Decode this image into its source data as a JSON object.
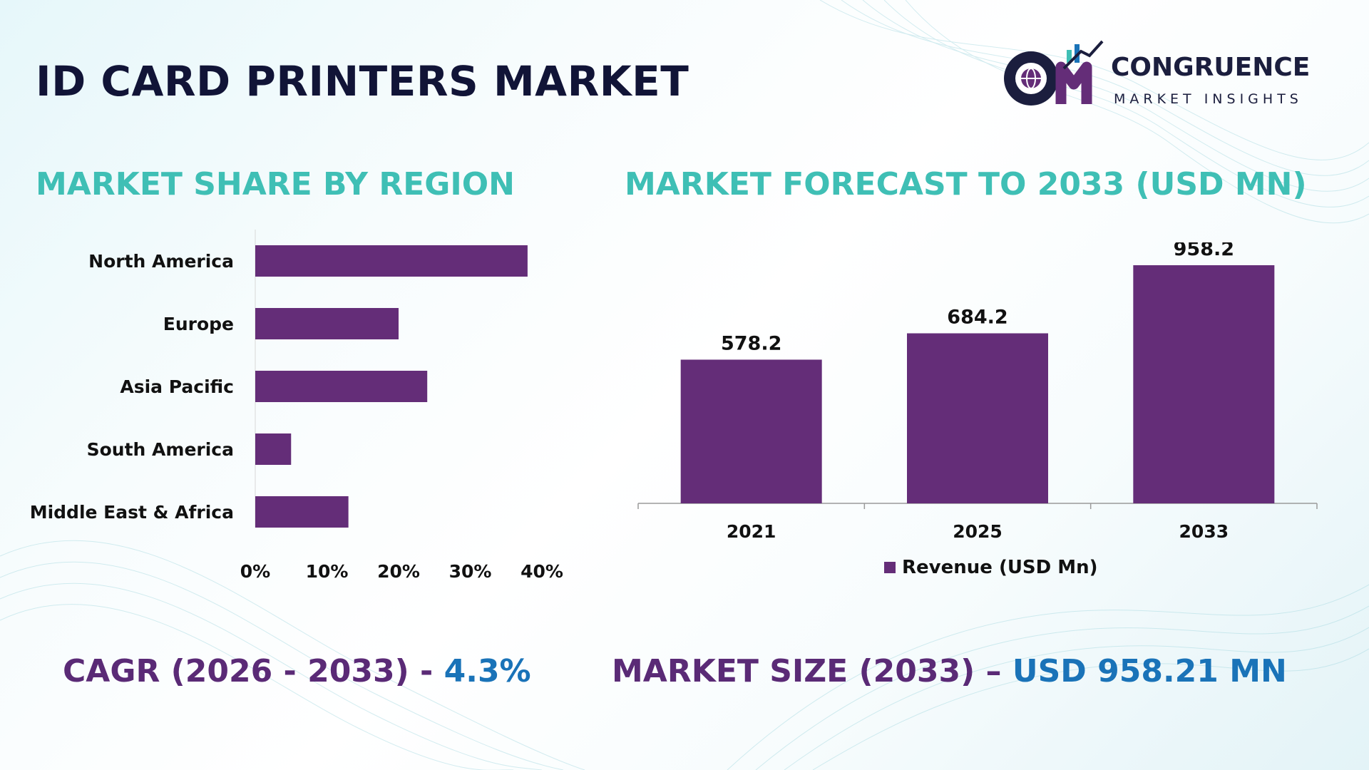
{
  "title": "ID CARD PRINTERS MARKET",
  "brand": {
    "name": "CONGRUENCE",
    "tagline": "MARKET INSIGHTS"
  },
  "sections": {
    "left_title": "MARKET SHARE BY REGION",
    "right_title": "MARKET FORECAST TO 2033 (USD MN)"
  },
  "colors": {
    "bar": "#642d78",
    "heading": "#3fbfb5",
    "stat_label": "#5a2a76",
    "stat_value": "#1a73b8",
    "title": "#111437"
  },
  "chart_data": [
    {
      "type": "bar",
      "orientation": "horizontal",
      "categories": [
        "North America",
        "Europe",
        "Asia Pacific",
        "South America",
        "Middle East & Africa"
      ],
      "values": [
        38,
        20,
        24,
        5,
        13
      ],
      "x_ticks": [
        "0%",
        "10%",
        "20%",
        "30%",
        "40%"
      ],
      "xlim": [
        0,
        40
      ],
      "unit": "%",
      "grid": false,
      "legend": "none"
    },
    {
      "type": "bar",
      "categories": [
        "2021",
        "2025",
        "2033"
      ],
      "series": [
        {
          "name": "Revenue (USD Mn)",
          "values": [
            578.2,
            684.2,
            958.2
          ]
        }
      ],
      "data_labels": [
        "578.2",
        "684.2",
        "958.2"
      ],
      "ylim": [
        0,
        1050
      ],
      "grid": false,
      "legend": "bottom"
    }
  ],
  "stats": {
    "cagr_label": "CAGR (2026 - 2033) - ",
    "cagr_value": "4.3%",
    "size_label": "MARKET SIZE (2033) – ",
    "size_value": "USD 958.21 MN"
  }
}
